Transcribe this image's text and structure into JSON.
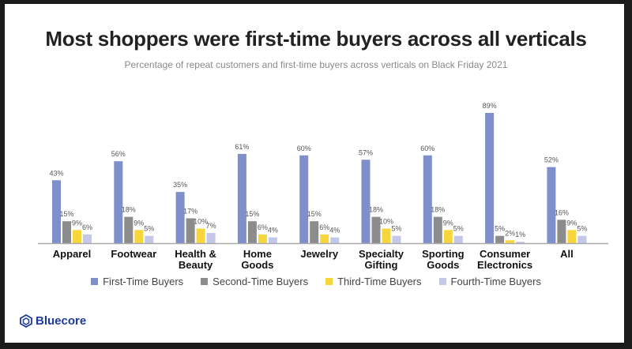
{
  "title": "Most shoppers were first-time buyers across all verticals",
  "subtitle": "Percentage of repeat customers and first-time buyers across verticals on Black Friday 2021",
  "brand": "Bluecore",
  "chart_data": {
    "type": "bar",
    "categories": [
      [
        "Apparel"
      ],
      [
        "Footwear"
      ],
      [
        "Health &",
        "Beauty"
      ],
      [
        "Home",
        "Goods"
      ],
      [
        "Jewelry"
      ],
      [
        "Specialty",
        "Gifting"
      ],
      [
        "Sporting",
        "Goods"
      ],
      [
        "Consumer",
        "Electronics"
      ],
      [
        "All"
      ]
    ],
    "series": [
      {
        "name": "First-Time Buyers",
        "color": "#7f8fcb",
        "values": [
          43,
          56,
          35,
          61,
          60,
          57,
          60,
          89,
          52
        ]
      },
      {
        "name": "Second-Time Buyers",
        "color": "#8c8c8c",
        "values": [
          15,
          18,
          17,
          15,
          15,
          18,
          18,
          5,
          16
        ]
      },
      {
        "name": "Third-Time Buyers",
        "color": "#f7d63c",
        "values": [
          9,
          9,
          10,
          6,
          6,
          10,
          9,
          2,
          9
        ]
      },
      {
        "name": "Fourth-Time Buyers",
        "color": "#c3c8e8",
        "values": [
          6,
          5,
          7,
          4,
          4,
          5,
          5,
          1,
          5
        ]
      }
    ],
    "value_suffix": "%",
    "ylim": [
      0,
      89
    ],
    "grid": false,
    "legend": "bottom",
    "data_labels": true
  }
}
